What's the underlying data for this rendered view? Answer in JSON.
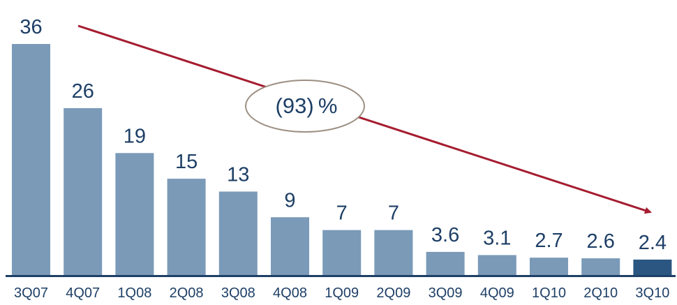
{
  "chart_data": {
    "type": "bar",
    "title": "",
    "xlabel": "",
    "ylabel": "",
    "categories": [
      "3Q07",
      "4Q07",
      "1Q08",
      "2Q08",
      "3Q08",
      "4Q08",
      "1Q09",
      "2Q09",
      "3Q09",
      "4Q09",
      "1Q10",
      "2Q10",
      "3Q10"
    ],
    "values": [
      36,
      26,
      19,
      15,
      13,
      9,
      7,
      7,
      3.6,
      3.1,
      2.7,
      2.6,
      2.4
    ],
    "value_labels": [
      "36",
      "26",
      "19",
      "15",
      "13",
      "9",
      "7",
      "7",
      "3.6",
      "3.1",
      "2.7",
      "2.6",
      "2.4"
    ],
    "highlight_index": 12,
    "ylim": [
      0,
      36
    ],
    "grid": false,
    "annotation": {
      "text": "(93) %",
      "from_category": "3Q07",
      "to_category": "3Q10"
    },
    "colors": {
      "bar": "#7a9ab8",
      "bar_highlight": "#2b5681",
      "axis": "#1e3f66",
      "arrow": "#a51c30",
      "ellipse_stroke": "#9c8f82",
      "text": "#1e3f66"
    }
  }
}
